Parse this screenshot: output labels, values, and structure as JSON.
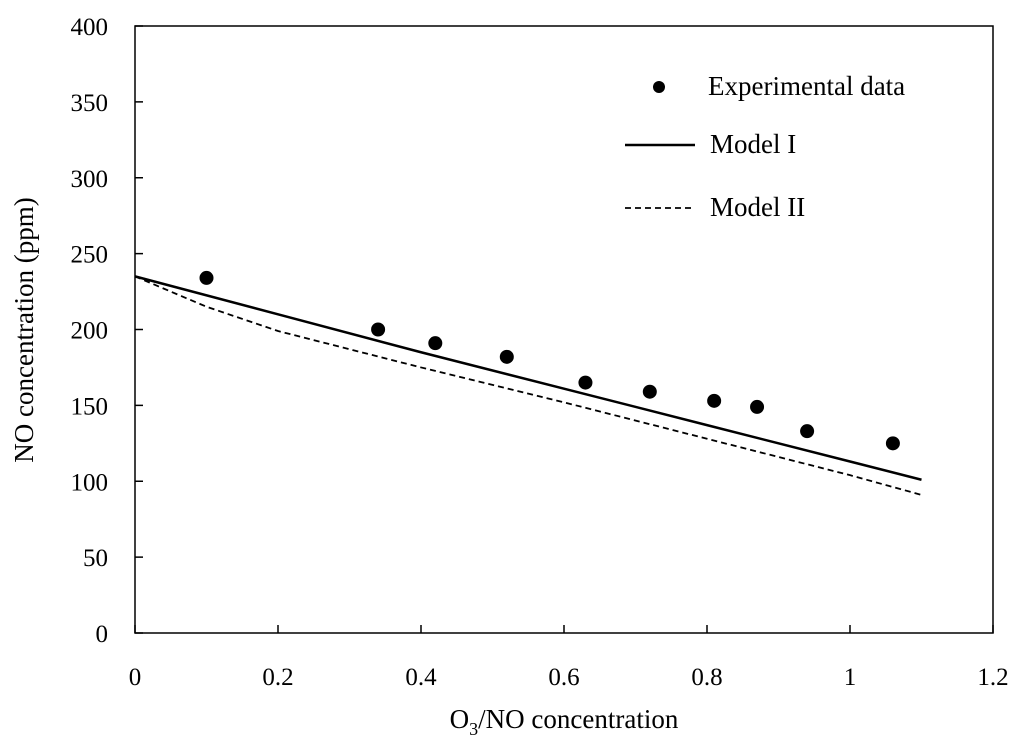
{
  "chart_data": {
    "type": "scatter",
    "title": "",
    "xlabel_main": "O",
    "xlabel_sub": "3",
    "xlabel_rest": "/NO concentration",
    "ylabel": "NO concentration (ppm)",
    "xlim": [
      0,
      1.2
    ],
    "ylim": [
      0,
      400
    ],
    "x_ticks": [
      0,
      0.2,
      0.4,
      0.6,
      0.8,
      1,
      1.2
    ],
    "x_tick_labels": [
      "0",
      "0.2",
      "0.4",
      "0.6",
      "0.8",
      "1",
      "1.2"
    ],
    "y_ticks": [
      0,
      50,
      100,
      150,
      200,
      250,
      300,
      350,
      400
    ],
    "y_tick_labels": [
      "0",
      "50",
      "100",
      "150",
      "200",
      "250",
      "300",
      "350",
      "400"
    ],
    "grid": false,
    "legend_position": "top-right",
    "series": [
      {
        "name": "Experimental  data",
        "style": "markers",
        "color": "#000000",
        "x": [
          0.1,
          0.34,
          0.42,
          0.52,
          0.63,
          0.72,
          0.81,
          0.87,
          0.94,
          1.06
        ],
        "y": [
          234,
          200,
          191,
          182,
          165,
          159,
          153,
          149,
          133,
          125
        ]
      },
      {
        "name": "Model I",
        "style": "solid",
        "color": "#000000",
        "x": [
          0,
          0.2,
          0.4,
          0.6,
          0.8,
          1.0,
          1.1
        ],
        "y": [
          235,
          210,
          185,
          161,
          137,
          113,
          101
        ]
      },
      {
        "name": "Model II",
        "style": "dashed",
        "color": "#000000",
        "x": [
          0,
          0.1,
          0.2,
          0.4,
          0.6,
          0.8,
          1.0,
          1.1
        ],
        "y": [
          235,
          215,
          199,
          175,
          152,
          128,
          104,
          91
        ]
      }
    ]
  }
}
